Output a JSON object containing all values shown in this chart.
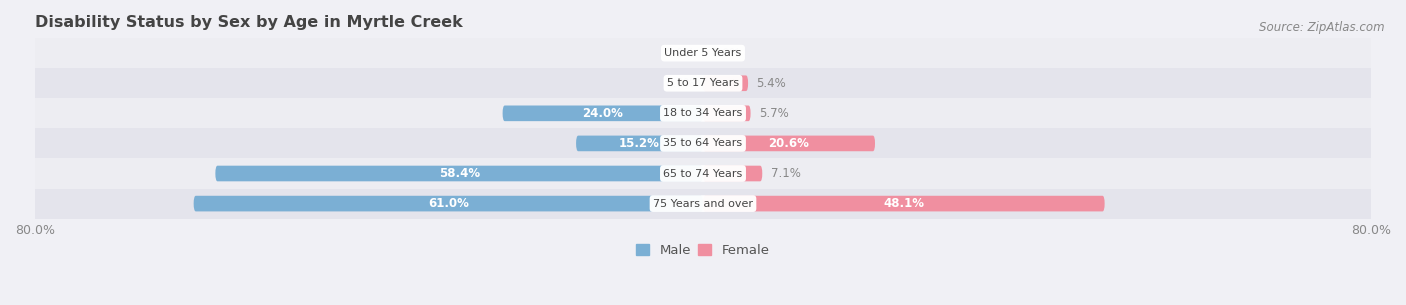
{
  "title": "Disability Status by Sex by Age in Myrtle Creek",
  "source": "Source: ZipAtlas.com",
  "categories": [
    "Under 5 Years",
    "5 to 17 Years",
    "18 to 34 Years",
    "35 to 64 Years",
    "65 to 74 Years",
    "75 Years and over"
  ],
  "male_values": [
    0.0,
    0.0,
    24.0,
    15.2,
    58.4,
    61.0
  ],
  "female_values": [
    0.0,
    5.4,
    5.7,
    20.6,
    7.1,
    48.1
  ],
  "male_color": "#7bafd4",
  "female_color": "#f08fa0",
  "row_colors": [
    "#ededf2",
    "#e4e4ec"
  ],
  "axis_max": 80.0,
  "label_color": "#888888",
  "title_color": "#444444",
  "bar_height": 0.52,
  "label_fontsize": 8.5,
  "category_fontsize": 8.0,
  "title_fontsize": 11.5,
  "source_fontsize": 8.5
}
